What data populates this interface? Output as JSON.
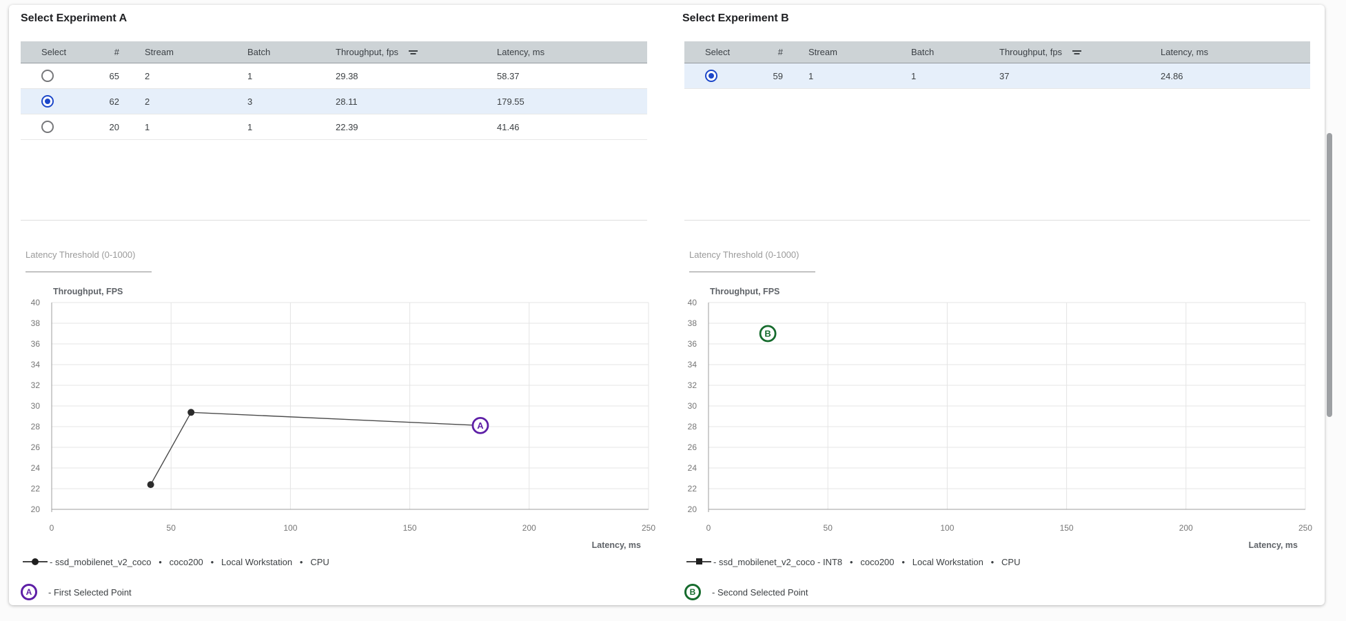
{
  "panels": [
    {
      "title": "Select Experiment A",
      "table": {
        "headers": {
          "select": "Select",
          "num": "#",
          "stream": "Stream",
          "batch": "Batch",
          "throughput": "Throughput, fps",
          "latency": "Latency, ms"
        },
        "rows": [
          {
            "selected": false,
            "num": "65",
            "stream": "2",
            "batch": "1",
            "throughput": "29.38",
            "latency": "58.37"
          },
          {
            "selected": true,
            "num": "62",
            "stream": "2",
            "batch": "3",
            "throughput": "28.11",
            "latency": "179.55"
          },
          {
            "selected": false,
            "num": "20",
            "stream": "1",
            "batch": "1",
            "throughput": "22.39",
            "latency": "41.46"
          }
        ]
      },
      "threshold": {
        "label": "Latency Threshold (0-1000)",
        "value": ""
      },
      "legend": {
        "series_label": "- ssd_mobilenet_v2_coco   •   coco200   •   Local Workstation   •   CPU",
        "point_letter": "A",
        "point_label": "- First Selected Point"
      }
    },
    {
      "title": "Select Experiment B",
      "table": {
        "headers": {
          "select": "Select",
          "num": "#",
          "stream": "Stream",
          "batch": "Batch",
          "throughput": "Throughput, fps",
          "latency": "Latency, ms"
        },
        "rows": [
          {
            "selected": true,
            "num": "59",
            "stream": "1",
            "batch": "1",
            "throughput": "37",
            "latency": "24.86"
          }
        ]
      },
      "threshold": {
        "label": "Latency Threshold (0-1000)",
        "value": ""
      },
      "legend": {
        "series_label": "- ssd_mobilenet_v2_coco - INT8   •   coco200   •   Local Workstation   •   CPU",
        "point_letter": "B",
        "point_label": "- Second Selected Point"
      }
    }
  ],
  "chart_data": [
    {
      "id": "chart-a",
      "type": "line",
      "xlabel": "Latency, ms",
      "ylabel": "Throughput, FPS",
      "xlim": [
        0,
        250
      ],
      "ylim": [
        20,
        40
      ],
      "xticks": [
        0,
        50,
        100,
        150,
        200,
        250
      ],
      "yticks": [
        20,
        22,
        24,
        26,
        28,
        30,
        32,
        34,
        36,
        38,
        40
      ],
      "series": [
        {
          "name": "ssd_mobilenet_v2_coco",
          "color": "#4a4a4a",
          "points": [
            {
              "x": 41.46,
              "y": 22.39,
              "marker": "dot"
            },
            {
              "x": 58.37,
              "y": 29.38,
              "marker": "dot"
            },
            {
              "x": 179.55,
              "y": 28.11,
              "marker": "letter",
              "letter": "A",
              "letter_color": "#5d1ea6"
            }
          ]
        }
      ]
    },
    {
      "id": "chart-b",
      "type": "line",
      "xlabel": "Latency, ms",
      "ylabel": "Throughput, FPS",
      "xlim": [
        0,
        250
      ],
      "ylim": [
        20,
        40
      ],
      "xticks": [
        0,
        50,
        100,
        150,
        200,
        250
      ],
      "yticks": [
        20,
        22,
        24,
        26,
        28,
        30,
        32,
        34,
        36,
        38,
        40
      ],
      "series": [
        {
          "name": "ssd_mobilenet_v2_coco - INT8",
          "color": "#4a4a4a",
          "points": [
            {
              "x": 24.86,
              "y": 37,
              "marker": "letter",
              "letter": "B",
              "letter_color": "#166b2d"
            }
          ]
        }
      ]
    }
  ],
  "colors": {
    "accent_a": "#5d1ea6",
    "accent_b": "#166b2d",
    "radio_checked": "#1c47c9",
    "selected_row_bg": "#e6effa",
    "header_bg": "#cdd3d6"
  }
}
